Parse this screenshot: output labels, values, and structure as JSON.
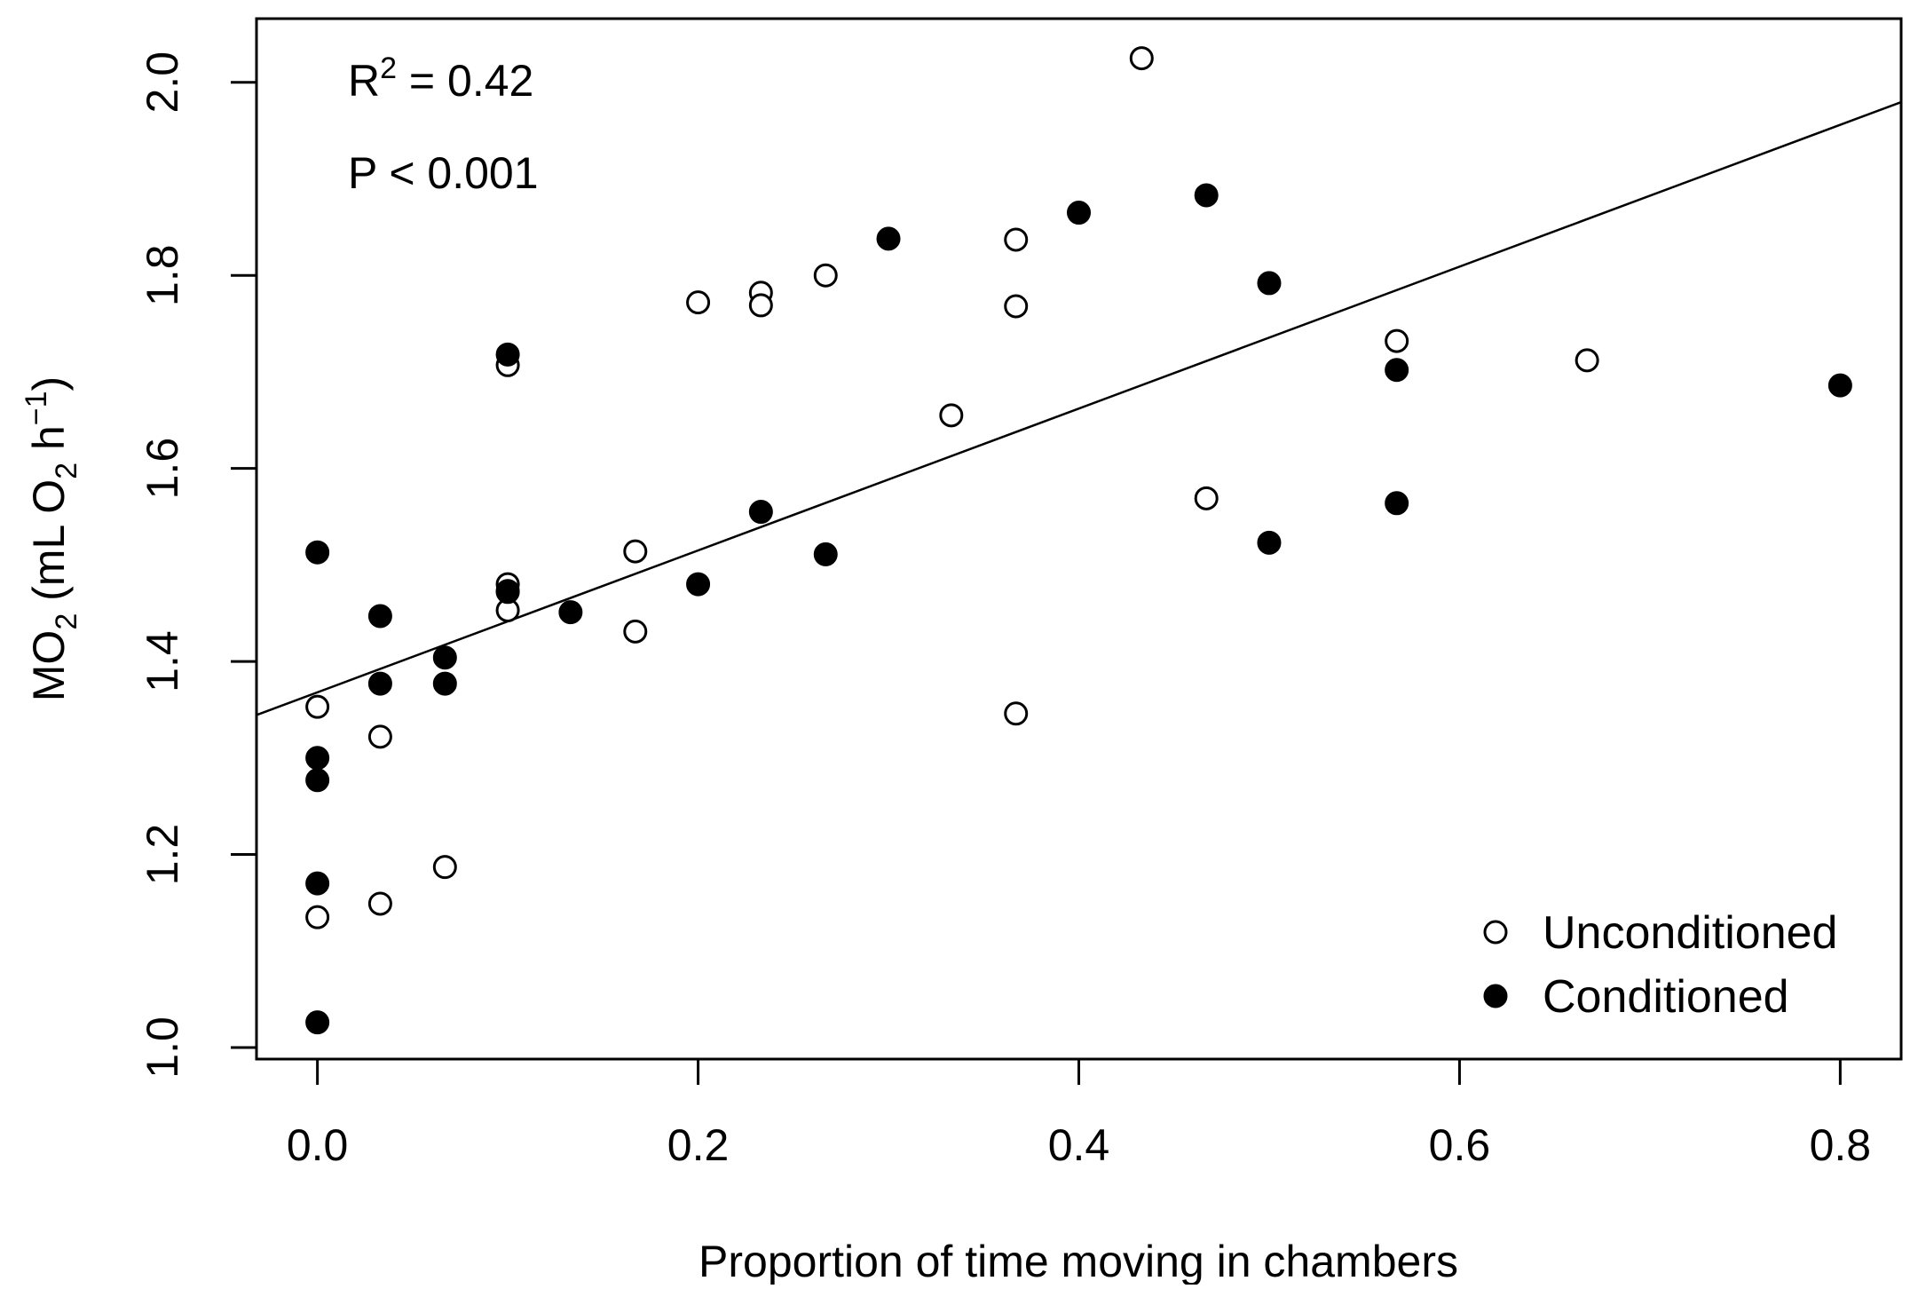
{
  "chart_data": {
    "type": "scatter",
    "title": "",
    "xlabel": "Proportion of time moving in chambers",
    "ylabel": {
      "main": "MO",
      "sub": "2",
      "paren_open": " (mL O",
      "sub2": "2",
      "unit": " h",
      "sup": "−1",
      "paren_close": ")"
    },
    "xlim": [
      -0.032,
      0.832
    ],
    "ylim": [
      0.988,
      2.066
    ],
    "x_ticks": [
      {
        "value": 0.0,
        "label": "0.0"
      },
      {
        "value": 0.2,
        "label": "0.2"
      },
      {
        "value": 0.4,
        "label": "0.4"
      },
      {
        "value": 0.6,
        "label": "0.6"
      },
      {
        "value": 0.8,
        "label": "0.8"
      }
    ],
    "y_ticks": [
      {
        "value": 1.0,
        "label": "1.0"
      },
      {
        "value": 1.2,
        "label": "1.2"
      },
      {
        "value": 1.4,
        "label": "1.4"
      },
      {
        "value": 1.6,
        "label": "1.6"
      },
      {
        "value": 1.8,
        "label": "1.8"
      },
      {
        "value": 2.0,
        "label": "2.0"
      }
    ],
    "grid": false,
    "legend_position": "bottom-right",
    "annotations": {
      "r2_prefix": "R",
      "r2_sup": "2",
      "r2_value": " = 0.42",
      "p_text": "P < 0.001"
    },
    "regression": {
      "intercept": 1.368,
      "slope": 0.735
    },
    "series": [
      {
        "name": "Unconditioned",
        "marker": "open-circle",
        "points": [
          [
            0.0,
            1.353
          ],
          [
            0.0,
            1.135
          ],
          [
            0.033,
            1.322
          ],
          [
            0.033,
            1.149
          ],
          [
            0.067,
            1.187
          ],
          [
            0.1,
            1.707
          ],
          [
            0.1,
            1.48
          ],
          [
            0.1,
            1.473
          ],
          [
            0.1,
            1.453
          ],
          [
            0.167,
            1.514
          ],
          [
            0.167,
            1.431
          ],
          [
            0.2,
            1.772
          ],
          [
            0.233,
            1.782
          ],
          [
            0.233,
            1.769
          ],
          [
            0.267,
            1.8
          ],
          [
            0.333,
            1.655
          ],
          [
            0.367,
            1.837
          ],
          [
            0.367,
            1.768
          ],
          [
            0.367,
            1.346
          ],
          [
            0.433,
            2.025
          ],
          [
            0.467,
            1.569
          ],
          [
            0.567,
            1.732
          ],
          [
            0.667,
            1.712
          ]
        ]
      },
      {
        "name": "Conditioned",
        "marker": "filled-circle",
        "points": [
          [
            0.0,
            1.513
          ],
          [
            0.0,
            1.3
          ],
          [
            0.0,
            1.277
          ],
          [
            0.0,
            1.17
          ],
          [
            0.0,
            1.026
          ],
          [
            0.033,
            1.447
          ],
          [
            0.033,
            1.377
          ],
          [
            0.067,
            1.404
          ],
          [
            0.067,
            1.377
          ],
          [
            0.1,
            1.718
          ],
          [
            0.1,
            1.472
          ],
          [
            0.133,
            1.451
          ],
          [
            0.2,
            1.48
          ],
          [
            0.233,
            1.555
          ],
          [
            0.267,
            1.511
          ],
          [
            0.3,
            1.838
          ],
          [
            0.4,
            1.865
          ],
          [
            0.467,
            1.883
          ],
          [
            0.5,
            1.792
          ],
          [
            0.5,
            1.523
          ],
          [
            0.567,
            1.702
          ],
          [
            0.567,
            1.564
          ],
          [
            0.8,
            1.686
          ]
        ]
      }
    ]
  }
}
